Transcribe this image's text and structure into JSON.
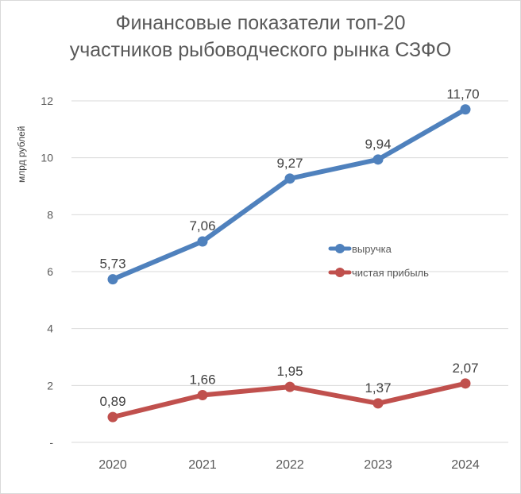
{
  "chart": {
    "title_line1": "Финансовые показатели топ-20",
    "title_line2": "участников рыбоводческого рынка СЗФО",
    "ylabel": "млрд рублей",
    "yticks": [
      "-",
      "2",
      "4",
      "6",
      "8",
      "10",
      "12"
    ],
    "xticks": [
      "2020",
      "2021",
      "2022",
      "2023",
      "2024"
    ],
    "legend": [
      "выручка",
      "чистая прибыль"
    ],
    "colors": {
      "revenue": "#4f81bd",
      "profit": "#c0504d",
      "grid": "#d9d9d9",
      "text": "#595959"
    }
  },
  "chart_data": {
    "type": "line",
    "title": "Финансовые показатели топ-20 участников рыбоводческого рынка СЗФО",
    "xlabel": "",
    "ylabel": "млрд рублей",
    "categories": [
      "2020",
      "2021",
      "2022",
      "2023",
      "2024"
    ],
    "series": [
      {
        "name": "выручка",
        "color": "#4f81bd",
        "values": [
          5.73,
          7.06,
          9.27,
          9.94,
          11.7
        ],
        "labels": [
          "5,73",
          "7,06",
          "9,27",
          "9,94",
          "11,70"
        ]
      },
      {
        "name": "чистая прибыль",
        "color": "#c0504d",
        "values": [
          0.89,
          1.66,
          1.95,
          1.37,
          2.07
        ],
        "labels": [
          "0,89",
          "1,66",
          "1,95",
          "1,37",
          "2,07"
        ]
      }
    ],
    "ylim": [
      0,
      12
    ],
    "yticks": [
      0,
      2,
      4,
      6,
      8,
      10,
      12
    ],
    "grid": true,
    "legend_position": "inside right-center"
  }
}
